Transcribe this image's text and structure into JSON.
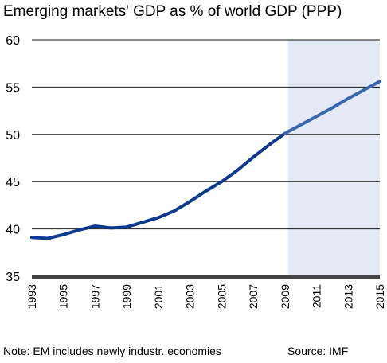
{
  "chart_data": {
    "type": "line",
    "title": "Emerging markets' GDP as % of world GDP (PPP)",
    "xlabel": "",
    "ylabel": "",
    "ylim": [
      35,
      60
    ],
    "xlim": [
      1993,
      2015
    ],
    "yticks": [
      35,
      40,
      45,
      50,
      55,
      60
    ],
    "xticks": [
      1993,
      1995,
      1997,
      1999,
      2001,
      2003,
      2005,
      2007,
      2009,
      2011,
      2013,
      2015
    ],
    "grid": "horizontal",
    "shaded_region": {
      "x_start": 2009.2,
      "x_end": 2015,
      "color": "#e3e9f5"
    },
    "series": [
      {
        "color": "#0c3a8c",
        "forecast_color": "#3a66b0",
        "x": [
          1993,
          1994,
          1995,
          1996,
          1997,
          1998,
          1999,
          2000,
          2001,
          2002,
          2003,
          2004,
          2005,
          2006,
          2007,
          2008,
          2009,
          2010,
          2011,
          2012,
          2013,
          2014,
          2015
        ],
        "y": [
          39.1,
          39.0,
          39.4,
          39.9,
          40.3,
          40.1,
          40.2,
          40.7,
          41.2,
          41.9,
          42.9,
          44.0,
          45.0,
          46.2,
          47.6,
          48.9,
          50.1,
          51.0,
          51.9,
          52.8,
          53.8,
          54.7,
          55.6
        ],
        "forecast_from": 2009.2
      }
    ]
  },
  "note": "Note: EM includes newly industr. economies",
  "source": "Source: IMF"
}
